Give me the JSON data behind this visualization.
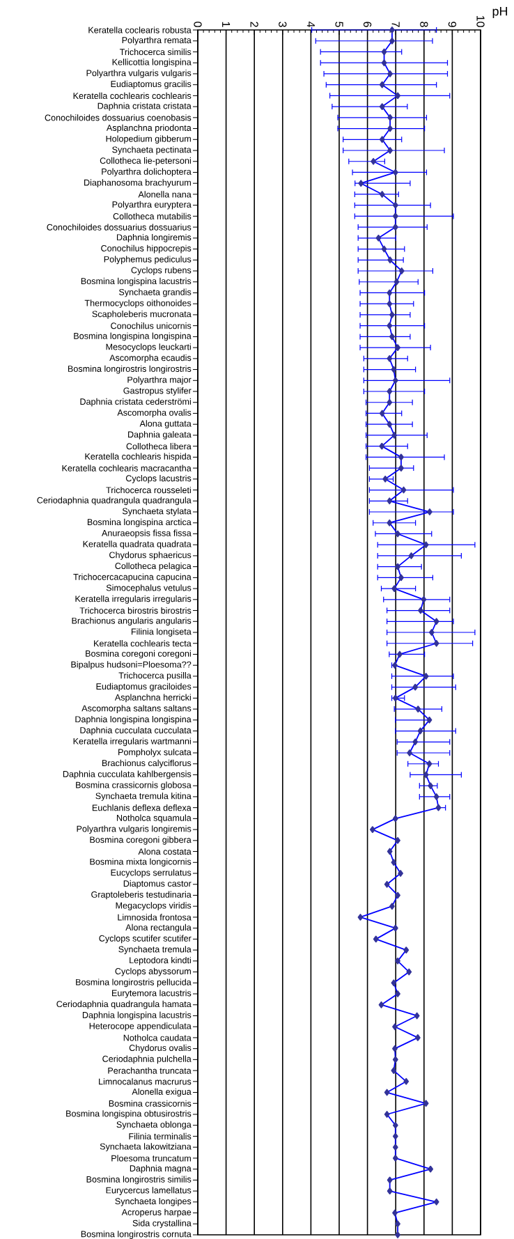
{
  "chart_data": {
    "type": "line",
    "orientation": "horizontal",
    "xlabel": "pH",
    "xlim": [
      0,
      10
    ],
    "xticks": [
      0,
      1,
      2,
      3,
      4,
      5,
      6,
      7,
      8,
      9,
      10
    ],
    "grid": "x",
    "marker": "diamond",
    "line_style": "solid",
    "categories": [
      "Keratella coclearis robusta",
      "Polyarthra remata",
      "Trichocerca similis",
      "Kellicottia longispina",
      "Polyarthra vulgaris vulgaris",
      "Eudiaptomus gracilis",
      "Keratella cochlearis cochlearis",
      "Daphnia cristata cristata",
      "Conochiloides dossuarius coenobasis",
      "Asplanchna priodonta",
      "Holopedium gibberum",
      "Synchaeta pectinata",
      "Collotheca lie-petersoni",
      "Polyarthra dolichoptera",
      "Diaphanosoma brachyurum",
      "Alonella nana",
      "Polyarthra euryptera",
      "Collotheca mutabilis",
      "Conochiloides dossuarius dossuarius",
      "Daphnia longiremis",
      "Conochilus hippocrepis",
      "Polyphemus pediculus",
      "Cyclops rubens",
      "Bosmina longispina lacustris",
      "Synchaeta grandis",
      "Thermocyclops oithonoides",
      "Scapholeberis mucronata",
      "Conochilus unicornis",
      "Bosmina longispina longispina",
      "Mesocyclops leuckarti",
      "Ascomorpha ecaudis",
      "Bosmina longirostris longirostris",
      "Polyarthra major",
      "Gastropus stylifer",
      "Daphnia cristata cederströmi",
      "Ascomorpha ovalis",
      "Alona guttata",
      "Daphnia galeata",
      "Collotheca libera",
      "Keratella cochlearis hispida",
      "Keratella cochlearis macracantha",
      "Cyclops lacustris",
      "Trichocerca rousseleti",
      "Ceriodaphnia quadrangula quadrangula",
      "Synchaeta stylata",
      "Bosmina longispina arctica",
      "Anuraeopsis fissa fissa",
      "Keratella quadrata quadrata",
      "Chydorus sphaericus",
      "Collotheca pelagica",
      "Trichocercacapucina capucina",
      "Simocephalus vetulus",
      "Keratella irregularis irregularis",
      "Trichocerca birostris birostris",
      "Brachionus angularis angularis",
      "Filinia longiseta",
      "Keratella cochlearis tecta",
      "Bosmina coregoni coregoni",
      "Bipalpus hudsoni=Ploesoma??",
      "Trichocerca  pusilla",
      "Eudiaptomus graciloides",
      "Asplanchna herricki",
      "Ascomorpha saltans saltans",
      "Daphnia longispina longispina",
      "Daphnia cucculata cucculata",
      "Keratella irregularis wartmanni",
      "Pompholyx sulcata",
      "Brachionus calyciflorus",
      "Daphnia cucculata kahlbergensis",
      "Bosmina crassicornis globosa",
      "Synchaeta tremula kitina",
      "Euchlanis deflexa deflexa",
      "Notholca squamula",
      "Polyarthra vulgaris longiremis",
      "Bosmina coregoni gibbera",
      "Alona costata",
      "Bosmina mixta longicornis",
      "Eucyclops serrulatus",
      "Diaptomus castor",
      "Graptoleberis testudinaria",
      "Megacyclops viridis",
      "Limnosida frontosa",
      "Alona rectangula",
      "Cyclops scutifer scutifer",
      "Synchaeta tremula",
      "Leptodora kindti",
      "Cyclops abyssorum",
      "Bosmina longirostris pellucida",
      "Eurytemora lacustris",
      "Ceriodaphnia quadrangula hamata",
      "Daphnia longispina lacustris",
      "Heterocope appendiculata",
      "Notholca caudata",
      "Chydorus ovalis",
      "Ceriodaphnia pulchella",
      "Perachantha truncata",
      "Limnocalanus macrurus",
      "Alonella exigua",
      "Bosmina crassicornis",
      "Bosmina longispina obtusirostris",
      "Synchaeta oblonga",
      "Filinia terminalis",
      "Synchaeta lakowitziana",
      "Ploesoma truncatum",
      "Daphnia magna",
      "Bosmina longirostris similis",
      "Eurycercus lamellatus",
      "Synchaeta longipes",
      "Acroperus harpae",
      "Sida crystallina",
      "Bosmina longirostris cornuta"
    ],
    "series": [
      {
        "color": "#0000ff",
        "values": [
          6.87,
          6.87,
          6.59,
          6.59,
          6.8,
          6.52,
          7.07,
          6.52,
          6.8,
          6.8,
          6.52,
          6.8,
          6.21,
          6.99,
          5.77,
          6.52,
          6.99,
          6.99,
          6.99,
          6.39,
          6.59,
          6.8,
          7.21,
          7.03,
          6.78,
          6.78,
          6.87,
          6.78,
          6.87,
          7.07,
          6.78,
          6.93,
          6.99,
          6.78,
          6.78,
          6.52,
          6.78,
          6.95,
          6.51,
          7.19,
          7.19,
          6.63,
          7.28,
          6.78,
          8.2,
          6.78,
          7.07,
          8.07,
          7.55,
          7.07,
          7.19,
          6.95,
          7.99,
          7.88,
          8.44,
          8.27,
          8.44,
          7.14,
          6.97,
          8.07,
          7.69,
          6.99,
          7.79,
          8.19,
          7.87,
          7.69,
          7.49,
          8.19,
          8.07,
          8.23,
          8.44,
          8.51,
          6.99,
          6.18,
          7.07,
          6.79,
          6.93,
          7.17,
          6.69,
          7.07,
          6.87,
          5.75,
          6.99,
          6.3,
          7.37,
          7.07,
          7.47,
          6.93,
          7.07,
          6.49,
          7.75,
          6.97,
          7.78,
          6.97,
          6.99,
          6.93,
          7.37,
          6.69,
          8.07,
          6.69,
          6.99,
          6.99,
          6.99,
          6.99,
          8.23,
          6.79,
          6.79,
          8.44,
          6.97,
          7.07,
          7.07
        ],
        "errors": [
          [
            4.03,
            8.44
          ],
          [
            4.17,
            8.3
          ],
          [
            4.34,
            7.21
          ],
          [
            4.34,
            8.83
          ],
          [
            4.46,
            8.83
          ],
          [
            4.54,
            8.44
          ],
          [
            4.67,
            8.91
          ],
          [
            4.75,
            7.41
          ],
          [
            4.95,
            8.09
          ],
          [
            4.95,
            8.02
          ],
          [
            5.14,
            7.21
          ],
          [
            5.14,
            8.72
          ],
          [
            5.34,
            6.61
          ],
          [
            5.47,
            8.09
          ],
          [
            5.56,
            7.51
          ],
          [
            5.55,
            7.1
          ],
          [
            5.55,
            8.23
          ],
          [
            5.55,
            9.04
          ],
          [
            5.67,
            8.11
          ],
          [
            5.67,
            7.0
          ],
          [
            5.67,
            7.31
          ],
          [
            5.67,
            7.27
          ],
          [
            5.67,
            8.31
          ],
          [
            5.71,
            7.79
          ],
          [
            5.74,
            8.02
          ],
          [
            5.74,
            7.63
          ],
          [
            5.74,
            7.51
          ],
          [
            5.74,
            8.02
          ],
          [
            5.74,
            7.51
          ],
          [
            5.74,
            8.23
          ],
          [
            5.87,
            7.42
          ],
          [
            5.87,
            7.7
          ],
          [
            5.87,
            8.91
          ],
          [
            5.87,
            8.02
          ],
          [
            5.95,
            7.59
          ],
          [
            5.95,
            7.21
          ],
          [
            5.95,
            7.59
          ],
          [
            5.95,
            8.11
          ],
          [
            5.95,
            7.42
          ],
          [
            5.95,
            8.72
          ],
          [
            6.07,
            7.63
          ],
          [
            6.07,
            6.91
          ],
          [
            6.07,
            9.04
          ],
          [
            6.07,
            7.42
          ],
          [
            6.07,
            9.04
          ],
          [
            6.2,
            7.7
          ],
          [
            6.28,
            8.27
          ],
          [
            6.36,
            9.8
          ],
          [
            6.36,
            9.32
          ],
          [
            6.36,
            7.91
          ],
          [
            6.36,
            8.31
          ],
          [
            6.49,
            7.7
          ],
          [
            6.57,
            8.91
          ],
          [
            6.69,
            8.91
          ],
          [
            6.69,
            9.04
          ],
          [
            6.69,
            9.8
          ],
          [
            6.69,
            9.72
          ],
          [
            6.77,
            8.02
          ],
          [
            6.86,
            6.97
          ],
          [
            6.86,
            9.04
          ],
          [
            6.86,
            9.12
          ],
          [
            6.86,
            7.31
          ],
          [
            6.95,
            8.63
          ],
          [
            6.99,
            8.19
          ],
          [
            6.99,
            9.12
          ],
          [
            7.05,
            8.91
          ],
          [
            7.05,
            8.91
          ],
          [
            7.43,
            8.51
          ],
          [
            7.51,
            9.32
          ],
          [
            7.84,
            8.47
          ],
          [
            7.84,
            8.91
          ],
          [
            8.51,
            8.76
          ],
          null,
          null,
          null,
          null,
          null,
          null,
          null,
          null,
          null,
          null,
          null,
          null,
          null,
          null,
          null,
          null,
          null,
          null,
          null,
          null,
          null,
          null,
          null,
          null,
          null,
          null,
          null,
          null,
          null,
          null,
          null,
          null,
          null,
          null,
          null,
          null,
          null,
          null,
          null
        ]
      }
    ]
  }
}
